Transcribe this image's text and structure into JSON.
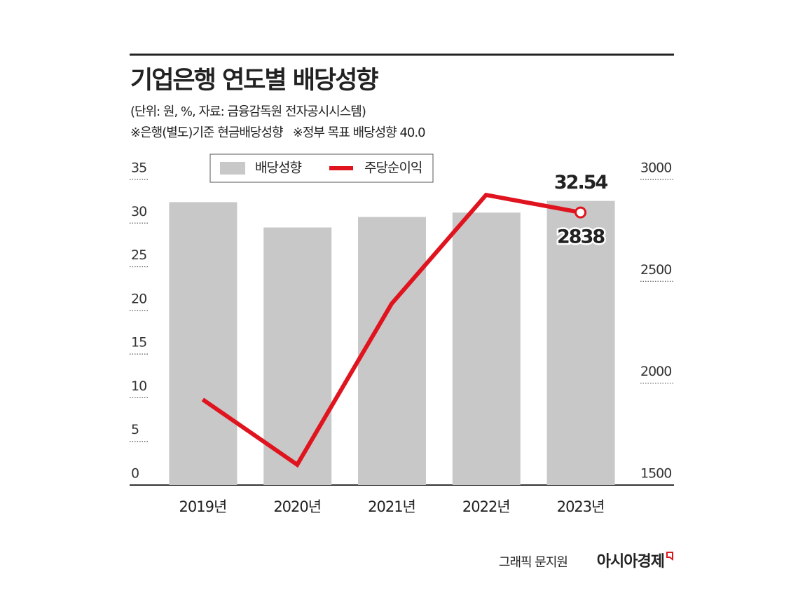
{
  "chart_data": {
    "type": "bar",
    "title": "기업은행 연도별 배당성향",
    "subtitle": [
      "(단위: 원, %, 자료: 금융감독원 전자공시시스템)",
      "※은행(별도)기준 현금배당성향   ※정부 목표 배당성향 40.0"
    ],
    "categories": [
      "2019년",
      "2020년",
      "2021년",
      "2022년",
      "2023년"
    ],
    "series": [
      {
        "name": "배당성향",
        "type": "bar",
        "color": "#c8c8c8",
        "values": [
          32.4,
          29.5,
          30.7,
          31.2,
          32.54
        ],
        "value_labels": [
          null,
          null,
          null,
          null,
          "32.54"
        ]
      },
      {
        "name": "주당순이익",
        "type": "line",
        "axis": "y2",
        "color": "#e0141e",
        "values": [
          1920,
          1600,
          2390,
          2924,
          2838
        ],
        "value_labels": [
          null,
          null,
          null,
          null,
          "2838"
        ]
      }
    ],
    "ylim": [
      0,
      35
    ],
    "yticks": [
      0,
      5,
      10,
      15,
      20,
      25,
      30,
      35
    ],
    "y2lim": [
      1500,
      3000
    ],
    "y2ticks": [
      1500,
      2000,
      2500,
      3000
    ],
    "legend": "top",
    "source": {
      "credit": "그래픽 문지원",
      "brand": "아시아경제"
    }
  }
}
